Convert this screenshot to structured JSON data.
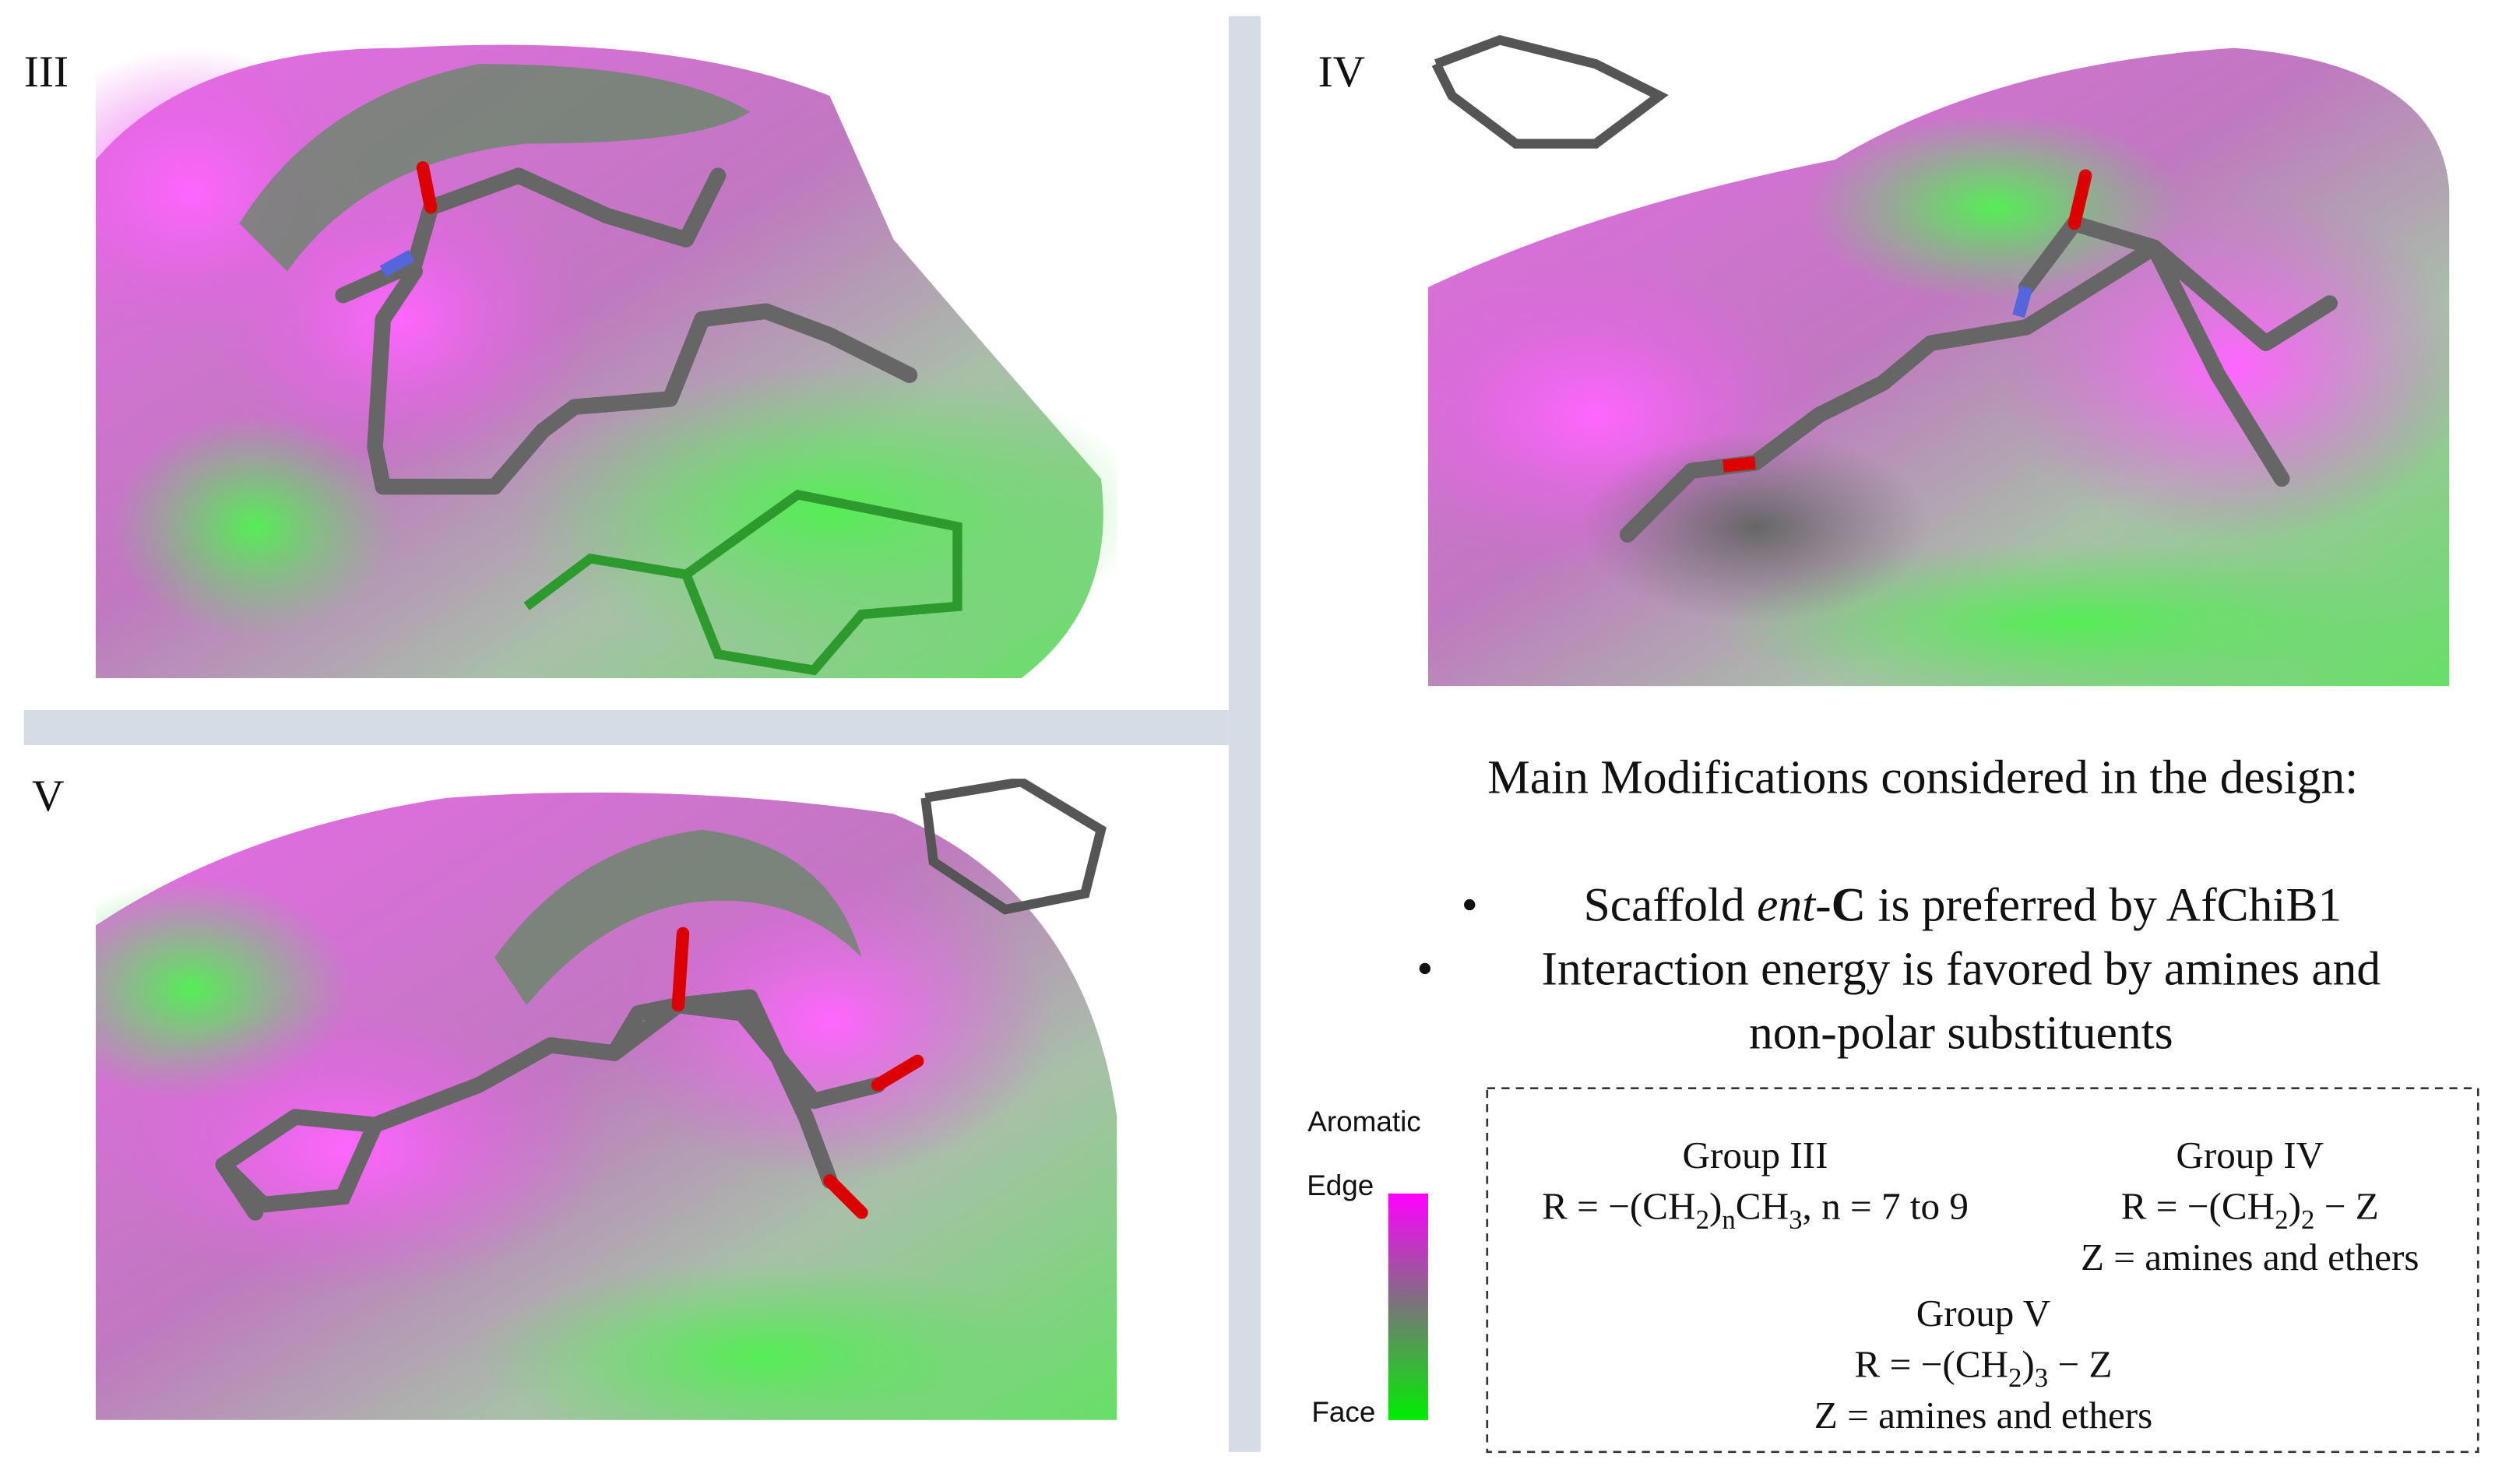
{
  "panels": [
    {
      "label": "III"
    },
    {
      "label": "IV"
    },
    {
      "label": "V"
    }
  ],
  "summary": {
    "heading": "Main Modifications considered in the design:",
    "bullets": [
      {
        "lines": [
          [
            "Scaffold ",
            "ent",
            "-",
            "C",
            " is preferred by AfChiB1"
          ]
        ]
      },
      {
        "lines": [
          [
            "Interaction energy is favored by amines and"
          ],
          [
            "non-polar substituents"
          ]
        ]
      }
    ]
  },
  "legend": {
    "title": "Aromatic",
    "top": "Edge",
    "bottom": "Face"
  },
  "groups": [
    {
      "name": "Group III",
      "lines": [
        [
          "R = −(CH",
          "2",
          ")",
          "n",
          "CH",
          "3",
          ", n = 7 to 9"
        ]
      ]
    },
    {
      "name": "Group IV",
      "lines": [
        [
          "R = −(CH",
          "2",
          ")",
          "2",
          " − Z"
        ],
        [
          "Z = amines and ethers"
        ]
      ]
    },
    {
      "name": "Group V",
      "lines": [
        [
          "R = −(CH",
          "2",
          ")",
          "3",
          " − Z"
        ],
        [
          "Z = amines and ethers"
        ]
      ]
    }
  ]
}
